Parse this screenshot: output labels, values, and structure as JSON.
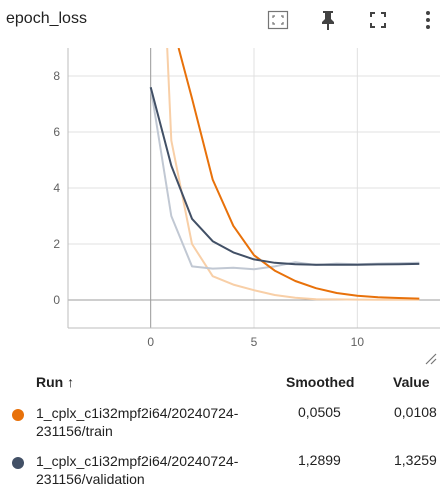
{
  "card": {
    "title": "epoch_loss"
  },
  "toolbar": {
    "fit_icon": "fit-domain-icon",
    "pin_icon": "pin-icon",
    "fullscreen_icon": "fullscreen-icon",
    "menu_icon": "more-vert-icon"
  },
  "chart_data": {
    "type": "line",
    "xlim": [
      -4,
      14
    ],
    "ylim": [
      -1,
      9
    ],
    "x_ticks": [
      0,
      5,
      10
    ],
    "y_ticks": [
      0,
      2,
      4,
      6,
      8
    ],
    "grid": true,
    "series": [
      {
        "name": "1_cplx_c1i32mpf2i64/20240724-231156/train",
        "role": "smoothed",
        "color": "#e8710a",
        "x": [
          1.35,
          2,
          3,
          4,
          5,
          6,
          7,
          8,
          9,
          10,
          11,
          12,
          13
        ],
        "y": [
          9.0,
          7.2,
          4.3,
          2.65,
          1.6,
          1.05,
          0.68,
          0.42,
          0.25,
          0.15,
          0.1,
          0.07,
          0.05
        ]
      },
      {
        "name": "1_cplx_c1i32mpf2i64/20240724-231156/train",
        "role": "raw",
        "color": "#f8cfa7",
        "x": [
          0.8,
          1,
          2,
          3,
          4,
          5,
          6,
          7,
          8,
          9,
          10,
          11,
          12,
          13
        ],
        "y": [
          9.0,
          5.7,
          2.0,
          0.85,
          0.55,
          0.35,
          0.18,
          0.08,
          0.03,
          0.02,
          0.015,
          0.012,
          0.011,
          0.0108
        ]
      },
      {
        "name": "1_cplx_c1i32mpf2i64/20240724-231156/validation",
        "role": "smoothed",
        "color": "#425066",
        "x": [
          0,
          1,
          2,
          3,
          4,
          5,
          6,
          7,
          8,
          9,
          10,
          11,
          12,
          13
        ],
        "y": [
          7.6,
          4.8,
          2.9,
          2.1,
          1.7,
          1.45,
          1.33,
          1.28,
          1.26,
          1.26,
          1.26,
          1.27,
          1.28,
          1.29
        ]
      },
      {
        "name": "1_cplx_c1i32mpf2i64/20240724-231156/validation",
        "role": "raw",
        "color": "#c1c8d3",
        "x": [
          0,
          1,
          2,
          3,
          4,
          5,
          6,
          7,
          8,
          9,
          10,
          11,
          12,
          13
        ],
        "y": [
          7.6,
          3.0,
          1.2,
          1.12,
          1.15,
          1.1,
          1.2,
          1.35,
          1.25,
          1.3,
          1.28,
          1.3,
          1.31,
          1.33
        ]
      }
    ]
  },
  "legend": {
    "headers": {
      "run": "Run ↑",
      "smoothed": "Smoothed",
      "value": "Value"
    },
    "rows": [
      {
        "color": "#e8710a",
        "run": "1_cplx_c1i32mpf2i64/20240724-231156/train",
        "smoothed": "0,0505",
        "value": "0,0108"
      },
      {
        "color": "#425066",
        "run": "1_cplx_c1i32mpf2i64/20240724-231156/validation",
        "smoothed": "1,2899",
        "value": "1,3259"
      }
    ]
  }
}
